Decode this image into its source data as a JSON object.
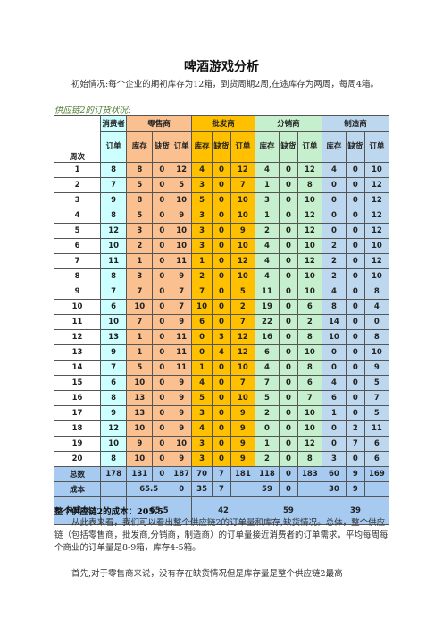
{
  "doc": {
    "title": "啤酒游戏分析",
    "intro": "初始情况:每个企业的期初库存为12箱，到货周期2周,在途库存为两周，每周4箱。",
    "subtitle": "供应链2的订货状况:",
    "summary_line": "整个供应链2的成本：205.5",
    "para1": "从此表来看，我们可以看出整个供应链2的订单量和库存,缺货情况。总体，整个供应链（包括零售商，批发商,分销商，制造商）的订单量接近消费者的订单需求。平均每周每个商业的订单量是8-9箱，库存4-5箱。",
    "para2": "首先,对于零售商来说，没有存在缺货情况但是库存量是整个供应链2最高"
  },
  "table": {
    "headers": {
      "week": "周次",
      "consumer": "消费者",
      "retailer": "零售商",
      "wholesaler": "批发商",
      "distributor": "分销商",
      "manufacturer": "制造商",
      "order": "订单",
      "inventory": "库存",
      "shortage": "缺货",
      "order_short": "订单"
    },
    "rows": [
      [
        "1",
        "8",
        "8",
        "0",
        "12",
        "4",
        "0",
        "12",
        "4",
        "0",
        "12",
        "4",
        "0",
        "10"
      ],
      [
        "2",
        "7",
        "5",
        "0",
        "5",
        "3",
        "0",
        "7",
        "1",
        "0",
        "8",
        "0",
        "0",
        "12"
      ],
      [
        "3",
        "9",
        "8",
        "0",
        "10",
        "5",
        "0",
        "10",
        "3",
        "0",
        "10",
        "0",
        "0",
        "12"
      ],
      [
        "4",
        "8",
        "5",
        "0",
        "9",
        "3",
        "0",
        "10",
        "1",
        "0",
        "12",
        "0",
        "0",
        "12"
      ],
      [
        "5",
        "12",
        "3",
        "0",
        "10",
        "3",
        "0",
        "9",
        "2",
        "0",
        "12",
        "0",
        "0",
        "12"
      ],
      [
        "6",
        "10",
        "2",
        "0",
        "10",
        "3",
        "0",
        "10",
        "4",
        "0",
        "10",
        "2",
        "0",
        "10"
      ],
      [
        "7",
        "11",
        "1",
        "0",
        "11",
        "1",
        "0",
        "12",
        "4",
        "0",
        "12",
        "2",
        "0",
        "12"
      ],
      [
        "8",
        "8",
        "3",
        "0",
        "9",
        "2",
        "0",
        "10",
        "4",
        "0",
        "10",
        "2",
        "0",
        "10"
      ],
      [
        "9",
        "7",
        "7",
        "0",
        "7",
        "7",
        "0",
        "5",
        "11",
        "0",
        "10",
        "4",
        "0",
        "8"
      ],
      [
        "10",
        "6",
        "10",
        "0",
        "7",
        "10",
        "0",
        "2",
        "19",
        "0",
        "6",
        "8",
        "0",
        "4"
      ],
      [
        "11",
        "10",
        "7",
        "0",
        "9",
        "6",
        "0",
        "7",
        "22",
        "0",
        "2",
        "14",
        "0",
        "0"
      ],
      [
        "12",
        "13",
        "1",
        "0",
        "11",
        "0",
        "3",
        "12",
        "16",
        "0",
        "8",
        "10",
        "0",
        "8"
      ],
      [
        "13",
        "9",
        "1",
        "0",
        "11",
        "0",
        "4",
        "12",
        "6",
        "0",
        "10",
        "0",
        "0",
        "10"
      ],
      [
        "14",
        "7",
        "5",
        "0",
        "11",
        "1",
        "0",
        "10",
        "4",
        "0",
        "8",
        "0",
        "0",
        "9"
      ],
      [
        "15",
        "6",
        "10",
        "0",
        "9",
        "4",
        "0",
        "7",
        "7",
        "0",
        "6",
        "4",
        "0",
        "5"
      ],
      [
        "16",
        "8",
        "13",
        "0",
        "9",
        "5",
        "0",
        "10",
        "5",
        "0",
        "7",
        "6",
        "0",
        "7"
      ],
      [
        "17",
        "9",
        "13",
        "0",
        "9",
        "3",
        "0",
        "9",
        "2",
        "0",
        "10",
        "1",
        "0",
        "5"
      ],
      [
        "18",
        "12",
        "10",
        "0",
        "9",
        "4",
        "0",
        "9",
        "0",
        "0",
        "10",
        "0",
        "2",
        "11"
      ],
      [
        "19",
        "10",
        "9",
        "0",
        "10",
        "3",
        "0",
        "9",
        "1",
        "0",
        "12",
        "0",
        "7",
        "6"
      ],
      [
        "20",
        "8",
        "10",
        "0",
        "9",
        "3",
        "0",
        "9",
        "2",
        "0",
        "8",
        "3",
        "0",
        "6"
      ]
    ],
    "total_label": "总数",
    "totals": [
      "178",
      "131",
      "0",
      "187",
      "70",
      "7",
      "181",
      "118",
      "0",
      "183",
      "60",
      "9",
      "169"
    ],
    "cost_label": "成本",
    "costs": {
      "retail_inv": "65.5",
      "retail_short": "0",
      "whole_inv": "35",
      "whole_short": "7",
      "dist_inv": "59",
      "dist_short": "0",
      "manu_inv": "30",
      "manu_short": "9"
    },
    "total_cost_label": "总成本",
    "total_costs": {
      "retailer": "65.5",
      "wholesaler": "42",
      "distributor": "59",
      "manufacturer": "39"
    }
  }
}
